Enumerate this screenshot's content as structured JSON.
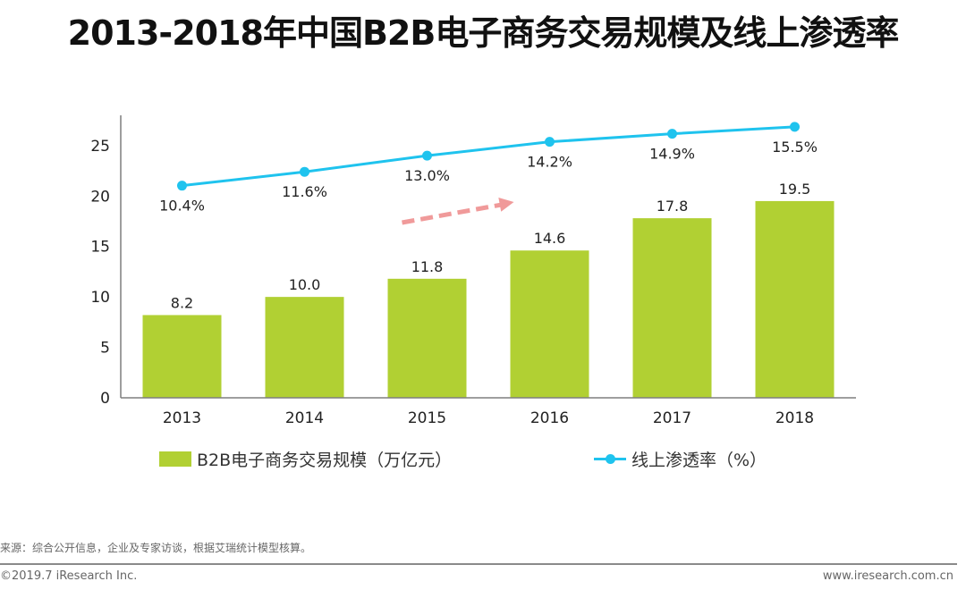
{
  "title": "2013-2018年中国B2B电子商务交易规模及线上渗透率",
  "colors": {
    "bar": "#B1D033",
    "line": "#1FC3EE",
    "arrow": "#F09A9A",
    "axis": "#7f7f7f"
  },
  "chart_data": {
    "type": "bar",
    "title": "2013-2018年中国B2B电子商务交易规模及线上渗透率",
    "xlabel": "",
    "ylabel": "",
    "categories": [
      "2013",
      "2014",
      "2015",
      "2016",
      "2017",
      "2018"
    ],
    "ylim": [
      0,
      28
    ],
    "yticks": [
      0,
      5,
      10,
      15,
      20,
      25
    ],
    "grid": false,
    "legend_position": "bottom",
    "series": [
      {
        "name": "B2B电子商务交易规模（万亿元）",
        "type": "bar",
        "axis": "primary",
        "values": [
          8.2,
          10.0,
          11.8,
          14.6,
          17.8,
          19.5
        ],
        "labels": [
          "8.2",
          "10.0",
          "11.8",
          "14.6",
          "17.8",
          "19.5"
        ]
      },
      {
        "name": "线上渗透率（%）",
        "type": "line",
        "axis": "secondary-hidden",
        "values": [
          10.4,
          11.6,
          13.0,
          14.2,
          14.9,
          15.5
        ],
        "labels": [
          "10.4%",
          "11.6%",
          "13.0%",
          "14.2%",
          "14.9%",
          "15.5%"
        ]
      }
    ],
    "secondary_ylim": [
      -8,
      16.5
    ],
    "annotations": [
      {
        "type": "dashed-arrow",
        "meaning": "upward trend",
        "from_category": "2015",
        "to_category": "2016"
      }
    ]
  },
  "legend": {
    "bar_label": "B2B电子商务交易规模（万亿元）",
    "line_label": "线上渗透率（%）"
  },
  "footer": {
    "source": "来源：综合公开信息，企业及专家访谈，根据艾瑞统计模型核算。",
    "copyright": "©2019.7 iResearch Inc.",
    "website": "www.iresearch.com.cn"
  }
}
